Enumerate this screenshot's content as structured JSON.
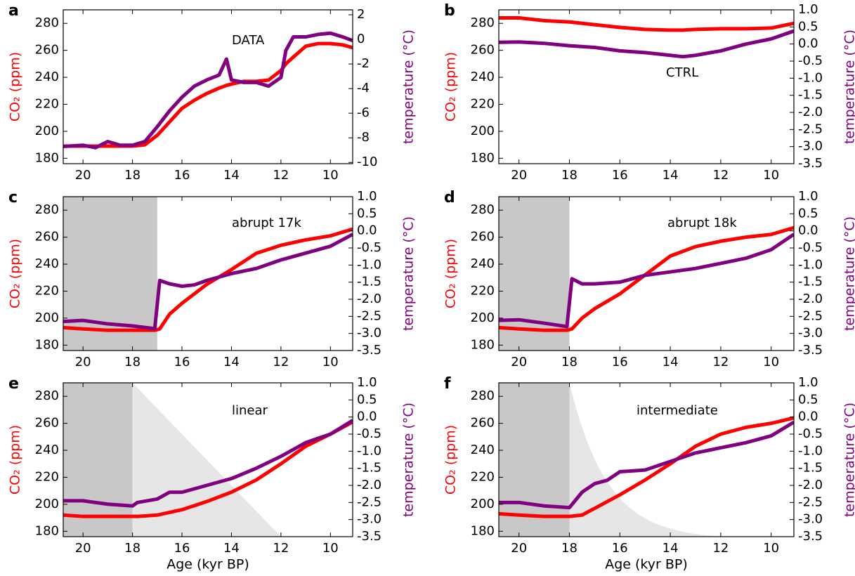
{
  "chart_data": [
    {
      "type": "line",
      "panel": "a",
      "annotation": "DATA",
      "y_label": "CO₂ (ppm)",
      "y2_label": "temperature (°C)",
      "xlim": [
        20.8,
        9.1
      ],
      "ylim": [
        176,
        290
      ],
      "y2lim": [
        -10.1,
        2.4
      ],
      "xticks": [
        20,
        18,
        16,
        14,
        12,
        10
      ],
      "yticks": [
        180,
        200,
        220,
        240,
        260,
        280
      ],
      "y2ticks": [
        -10,
        -8,
        -6,
        -4,
        -2,
        0,
        2
      ],
      "x": [
        20.8,
        20,
        19.5,
        19,
        18.5,
        18,
        17.5,
        17,
        16.5,
        16,
        15.5,
        15,
        14.5,
        14.2,
        14,
        13.5,
        13,
        12.5,
        12,
        11.8,
        11.5,
        11,
        10.5,
        10,
        9.5,
        9.1
      ],
      "series": [
        {
          "color": "#ff0000",
          "values": [
            189,
            189,
            189,
            189,
            189,
            189,
            190,
            197,
            207,
            217,
            223,
            228,
            232,
            234,
            235,
            237,
            237,
            238,
            245,
            250,
            255,
            263,
            265,
            265,
            264,
            262
          ]
        },
        {
          "color": "#800080",
          "axis": "y2",
          "values": [
            -8.7,
            -8.6,
            -8.8,
            -8.3,
            -8.6,
            -8.6,
            -8.3,
            -7.1,
            -5.8,
            -4.7,
            -3.8,
            -3.3,
            -2.9,
            -1.6,
            -3.3,
            -3.5,
            -3.5,
            -3.8,
            -3.1,
            -0.9,
            0.2,
            0.2,
            0.4,
            0.5,
            0.2,
            -0.1
          ]
        }
      ]
    },
    {
      "type": "line",
      "panel": "b",
      "annotation": "CTRL",
      "y_label": "CO₂ (ppm)",
      "y2_label": "temperature (°C)",
      "xlim": [
        20.8,
        9.1
      ],
      "ylim": [
        176,
        290
      ],
      "y2lim": [
        -3.5,
        1.0
      ],
      "xticks": [
        20,
        18,
        16,
        14,
        12,
        10
      ],
      "yticks": [
        180,
        200,
        220,
        240,
        260,
        280
      ],
      "y2ticks": [
        -3.5,
        {
          "value": -3,
          "label": "-3.0"
        },
        -2.5,
        {
          "value": -2,
          "label": "-2.0"
        },
        -1.5,
        {
          "value": -1,
          "label": "-1.0"
        },
        -0.5,
        {
          "value": 0,
          "label": "0.0"
        },
        0.5,
        {
          "value": 1,
          "label": "1.0"
        }
      ],
      "x": [
        20.8,
        20,
        19,
        18,
        17,
        16,
        15,
        14,
        13.5,
        13,
        12,
        11,
        10,
        9.1
      ],
      "series": [
        {
          "color": "#ff0000",
          "values": [
            284,
            284,
            282,
            281,
            279,
            277,
            275.5,
            275,
            275,
            275.5,
            276,
            276,
            276.5,
            280
          ]
        },
        {
          "color": "#800080",
          "axis": "y2",
          "values": [
            0.05,
            0.06,
            0.02,
            -0.05,
            -0.1,
            -0.2,
            -0.25,
            -0.33,
            -0.37,
            -0.33,
            -0.2,
            0.0,
            0.15,
            0.38
          ]
        }
      ]
    },
    {
      "type": "line",
      "panel": "c",
      "annotation": "abrupt 17k",
      "y_label": "CO₂ (ppm)",
      "y2_label": "temperature (°C)",
      "xlim": [
        20.8,
        9.1
      ],
      "ylim": [
        176,
        290
      ],
      "y2lim": [
        -3.5,
        1.0
      ],
      "shading": {
        "until": 17
      },
      "xticks": [
        20,
        18,
        16,
        14,
        12,
        10
      ],
      "yticks": [
        180,
        200,
        220,
        240,
        260,
        280
      ],
      "y2ticks": [
        -3.5,
        {
          "value": -3,
          "label": "-3.0"
        },
        -2.5,
        {
          "value": -2,
          "label": "-2.0"
        },
        -1.5,
        {
          "value": -1,
          "label": "-1.0"
        },
        -0.5,
        {
          "value": 0,
          "label": "0.0"
        },
        0.5,
        {
          "value": 1,
          "label": "1.0"
        }
      ],
      "x": [
        20.8,
        20,
        19,
        18,
        17.1,
        16.9,
        16.5,
        16,
        15.5,
        15,
        14,
        13,
        12,
        11,
        10,
        9.1
      ],
      "series": [
        {
          "color": "#ff0000",
          "values": [
            193,
            192,
            191,
            191,
            191,
            192,
            203,
            211,
            218,
            225,
            236,
            248,
            254,
            258,
            261,
            266
          ]
        },
        {
          "color": "#800080",
          "axis": "y2",
          "values": [
            -2.65,
            -2.62,
            -2.72,
            -2.78,
            -2.86,
            -1.45,
            -1.55,
            -1.62,
            -1.58,
            -1.45,
            -1.25,
            -1.1,
            -0.85,
            -0.65,
            -0.45,
            -0.1
          ]
        }
      ]
    },
    {
      "type": "line",
      "panel": "d",
      "annotation": "abrupt 18k",
      "y_label": "CO₂ (ppm)",
      "y2_label": "temperature (°C)",
      "xlim": [
        20.8,
        9.1
      ],
      "ylim": [
        176,
        290
      ],
      "y2lim": [
        -3.5,
        1.0
      ],
      "shading": {
        "until": 18
      },
      "xticks": [
        20,
        18,
        16,
        14,
        12,
        10
      ],
      "yticks": [
        180,
        200,
        220,
        240,
        260,
        280
      ],
      "y2ticks": [
        -3.5,
        {
          "value": -3,
          "label": "-3.0"
        },
        -2.5,
        {
          "value": -2,
          "label": "-2.0"
        },
        -1.5,
        {
          "value": -1,
          "label": "-1.0"
        },
        -0.5,
        {
          "value": 0,
          "label": "0.0"
        },
        0.5,
        {
          "value": 1,
          "label": "1.0"
        }
      ],
      "x": [
        20.8,
        20,
        19,
        18.1,
        17.9,
        17.5,
        17,
        16,
        15,
        14,
        13,
        12,
        11,
        10,
        9.1
      ],
      "series": [
        {
          "color": "#ff0000",
          "values": [
            193,
            192,
            191,
            191,
            192,
            200,
            207,
            218,
            232,
            246,
            253,
            257,
            260,
            262,
            267
          ]
        },
        {
          "color": "#800080",
          "axis": "y2",
          "values": [
            -2.62,
            -2.6,
            -2.7,
            -2.8,
            -1.4,
            -1.55,
            -1.55,
            -1.5,
            -1.3,
            -1.2,
            -1.1,
            -0.95,
            -0.8,
            -0.55,
            -0.1
          ]
        }
      ]
    },
    {
      "type": "line",
      "panel": "e",
      "annotation": "linear",
      "y_label": "CO₂ (ppm)",
      "y2_label": "temperature (°C)",
      "x_label": "Age (kyr BP)",
      "xlim": [
        20.8,
        9.1
      ],
      "ylim": [
        176,
        290
      ],
      "y2lim": [
        -3.5,
        1.0
      ],
      "shading": {
        "until": 18
      },
      "ramp": {
        "from": 18,
        "to": 12,
        "shape": "linear"
      },
      "xticks": [
        20,
        18,
        16,
        14,
        12,
        10
      ],
      "yticks": [
        180,
        200,
        220,
        240,
        260,
        280
      ],
      "y2ticks": [
        -3.5,
        {
          "value": -3,
          "label": "-3.0"
        },
        -2.5,
        {
          "value": -2,
          "label": "-2.0"
        },
        -1.5,
        {
          "value": -1,
          "label": "-1.0"
        },
        -0.5,
        {
          "value": 0,
          "label": "0.0"
        },
        0.5,
        {
          "value": 1,
          "label": "1.0"
        }
      ],
      "x": [
        20.8,
        20,
        19,
        18,
        17.8,
        17,
        16.5,
        16,
        15,
        14,
        13,
        12,
        11,
        10,
        9.1
      ],
      "series": [
        {
          "color": "#ff0000",
          "values": [
            192,
            191,
            191,
            191,
            191,
            192,
            194,
            196,
            202,
            209,
            218,
            230,
            243,
            252,
            261
          ]
        },
        {
          "color": "#800080",
          "axis": "y2",
          "values": [
            -2.45,
            -2.45,
            -2.55,
            -2.6,
            -2.5,
            -2.4,
            -2.2,
            -2.2,
            -2.0,
            -1.8,
            -1.5,
            -1.15,
            -0.75,
            -0.5,
            -0.1
          ]
        }
      ]
    },
    {
      "type": "line",
      "panel": "f",
      "annotation": "intermediate",
      "y_label": "CO₂ (ppm)",
      "y2_label": "temperature (°C)",
      "x_label": "Age (kyr BP)",
      "xlim": [
        20.8,
        9.1
      ],
      "ylim": [
        176,
        290
      ],
      "y2lim": [
        -3.5,
        1.0
      ],
      "shading": {
        "until": 18
      },
      "ramp": {
        "from": 18,
        "to": 12,
        "shape": "exponential"
      },
      "xticks": [
        20,
        18,
        16,
        14,
        12,
        10
      ],
      "yticks": [
        180,
        200,
        220,
        240,
        260,
        280
      ],
      "y2ticks": [
        -3.5,
        {
          "value": -3,
          "label": "-3.0"
        },
        -2.5,
        {
          "value": -2,
          "label": "-2.0"
        },
        -1.5,
        {
          "value": -1,
          "label": "-1.0"
        },
        -0.5,
        {
          "value": 0,
          "label": "0.0"
        },
        0.5,
        {
          "value": 1,
          "label": "1.0"
        }
      ],
      "x": [
        20.8,
        20,
        19,
        18,
        17.5,
        17,
        16.5,
        16,
        15,
        14,
        13,
        12,
        11,
        10,
        9.1
      ],
      "series": [
        {
          "color": "#ff0000",
          "values": [
            193,
            192,
            191,
            191,
            192,
            197,
            202,
            207,
            218,
            230,
            243,
            252,
            257,
            260,
            264
          ]
        },
        {
          "color": "#800080",
          "axis": "y2",
          "values": [
            -2.5,
            -2.5,
            -2.6,
            -2.65,
            -2.2,
            -1.95,
            -1.85,
            -1.6,
            -1.55,
            -1.3,
            -1.05,
            -0.9,
            -0.75,
            -0.55,
            -0.15
          ]
        }
      ]
    }
  ]
}
